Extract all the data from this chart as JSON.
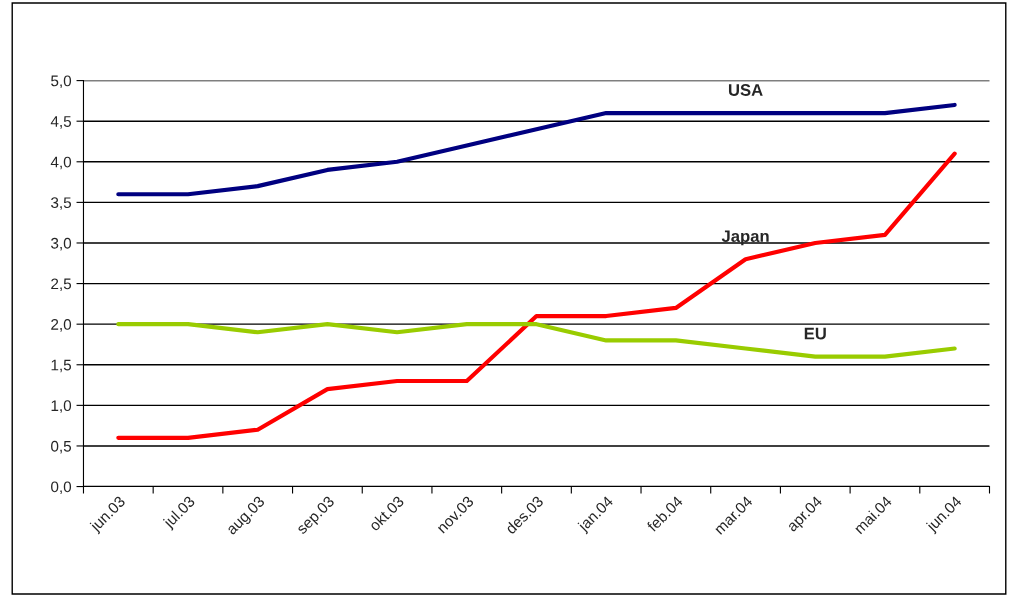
{
  "chart_data": {
    "type": "line",
    "categories": [
      "jun.03",
      "jul.03",
      "aug.03",
      "sep.03",
      "okt.03",
      "nov.03",
      "des.03",
      "jan.04",
      "feb.04",
      "mar.04",
      "apr.04",
      "mai.04",
      "jun.04"
    ],
    "series": [
      {
        "name": "USA",
        "color": "#000080",
        "values": [
          3.6,
          3.6,
          3.7,
          3.9,
          4.0,
          4.2,
          4.4,
          4.6,
          4.6,
          4.6,
          4.6,
          4.6,
          4.7
        ]
      },
      {
        "name": "Japan",
        "color": "#ff0000",
        "values": [
          0.6,
          0.6,
          0.7,
          1.2,
          1.3,
          1.3,
          2.1,
          2.1,
          2.2,
          2.8,
          3.0,
          3.1,
          4.1
        ]
      },
      {
        "name": "EU",
        "color": "#99cc00",
        "values": [
          2.0,
          2.0,
          1.9,
          2.0,
          1.9,
          2.0,
          2.0,
          1.8,
          1.8,
          1.7,
          1.6,
          1.6,
          1.7
        ]
      }
    ],
    "ylim": [
      0,
      5
    ],
    "yticks": [
      {
        "value": 0,
        "label": "0,0"
      },
      {
        "value": 0.5,
        "label": "0,5"
      },
      {
        "value": 1,
        "label": "1,0"
      },
      {
        "value": 1.5,
        "label": "1,5"
      },
      {
        "value": 2,
        "label": "2,0"
      },
      {
        "value": 2.5,
        "label": "2,5"
      },
      {
        "value": 3,
        "label": "3,0"
      },
      {
        "value": 3.5,
        "label": "3,5"
      },
      {
        "value": 4,
        "label": "4,0"
      },
      {
        "value": 4.5,
        "label": "4,5"
      },
      {
        "value": 5,
        "label": "5,0"
      }
    ],
    "grid": "y",
    "legend": false,
    "marker": "none",
    "line_style": "solid"
  }
}
